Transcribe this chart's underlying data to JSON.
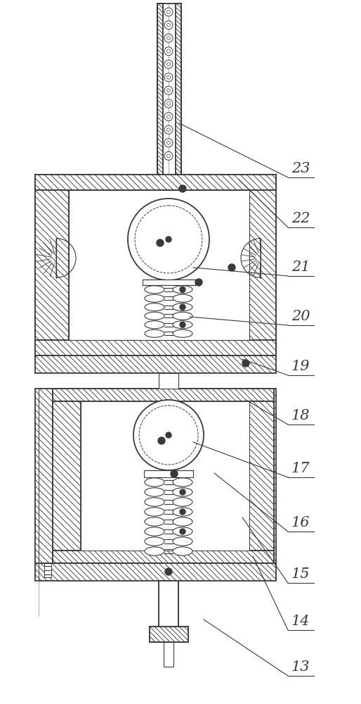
{
  "line_color": "#3a3a3a",
  "bg_color": "#ffffff",
  "figsize": [
    5.14,
    10.0
  ],
  "dpi": 100,
  "label_data": [
    [
      "13",
      415,
      960,
      290,
      880
    ],
    [
      "14",
      415,
      895,
      360,
      790
    ],
    [
      "15",
      415,
      828,
      345,
      735
    ],
    [
      "16",
      415,
      755,
      305,
      672
    ],
    [
      "17",
      415,
      678,
      275,
      628
    ],
    [
      "18",
      415,
      603,
      350,
      568
    ],
    [
      "19",
      415,
      533,
      345,
      510
    ],
    [
      "20",
      415,
      462,
      270,
      450
    ],
    [
      "21",
      415,
      392,
      275,
      380
    ],
    [
      "22",
      415,
      323,
      340,
      255
    ],
    [
      "23",
      415,
      252,
      255,
      175
    ]
  ]
}
